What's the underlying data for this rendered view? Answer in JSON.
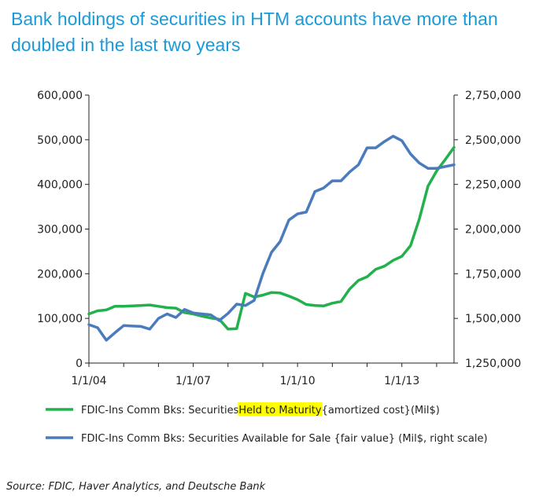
{
  "title": "Bank holdings of securities in HTM accounts have more than doubled in the last two years",
  "source": "Source: FDIC, Haver Analytics, and Deutsche Bank",
  "colors": {
    "title": "#1a9ad6",
    "htm": "#22b14c",
    "afs": "#4a7bbd",
    "highlight": "#ffff00"
  },
  "chart_data": {
    "type": "line",
    "x_tick_labels": [
      "1/1/04",
      "1/1/07",
      "1/1/10",
      "1/1/13"
    ],
    "x_tick_values": [
      2004,
      2007,
      2010,
      2013
    ],
    "xlim": [
      2004,
      2014.5
    ],
    "left_axis": {
      "ticks": [
        0,
        100000,
        200000,
        300000,
        400000,
        500000,
        600000
      ],
      "labels": [
        "0",
        "100,000",
        "200,000",
        "300,000",
        "400,000",
        "500,000",
        "600,000"
      ],
      "ylim": [
        0,
        600000
      ]
    },
    "right_axis": {
      "ticks": [
        1250000,
        1500000,
        1750000,
        2000000,
        2250000,
        2500000,
        2750000
      ],
      "labels": [
        "1,250,000",
        "1,500,000",
        "1,750,000",
        "2,000,000",
        "2,250,000",
        "2,500,000",
        "2,750,000"
      ],
      "ylim": [
        1250000,
        2750000
      ]
    },
    "series": [
      {
        "name": "FDIC-Ins Comm Bks: Securities Held to Maturity {amortized cost}(Mil$)",
        "legend_pre": "FDIC-Ins Comm Bks: Securities ",
        "legend_highlight": "Held to Maturity",
        "legend_post": " {amortized cost}(Mil$)",
        "axis": "left",
        "x": [
          2004.0,
          2004.25,
          2004.5,
          2004.75,
          2005.0,
          2005.25,
          2005.5,
          2005.75,
          2006.0,
          2006.25,
          2006.5,
          2006.75,
          2007.0,
          2007.25,
          2007.5,
          2007.75,
          2008.0,
          2008.25,
          2008.5,
          2008.75,
          2009.0,
          2009.25,
          2009.5,
          2009.75,
          2010.0,
          2010.25,
          2010.5,
          2010.75,
          2011.0,
          2011.25,
          2011.5,
          2011.75,
          2012.0,
          2012.25,
          2012.5,
          2012.75,
          2013.0,
          2013.25,
          2013.5,
          2013.75,
          2014.0,
          2014.25,
          2014.5
        ],
        "values": [
          110000,
          117000,
          119000,
          127000,
          127000,
          128000,
          129000,
          130000,
          127000,
          124000,
          123000,
          113000,
          110000,
          105000,
          101000,
          98000,
          76000,
          77000,
          156000,
          148000,
          152000,
          158000,
          157000,
          150000,
          142000,
          131000,
          129000,
          128000,
          134000,
          138000,
          166000,
          185000,
          193000,
          210000,
          217000,
          230000,
          239000,
          263000,
          322000,
          396000,
          430000,
          456000,
          483000
        ]
      },
      {
        "name": "FDIC-Ins Comm Bks: Securities Available for Sale {fair value} (Mil$, right scale)",
        "legend_pre": "FDIC-Ins Comm Bks: Securities Available for Sale {fair value} (Mil$, right scale)",
        "axis": "right",
        "x": [
          2004.0,
          2004.25,
          2004.5,
          2004.75,
          2005.0,
          2005.25,
          2005.5,
          2005.75,
          2006.0,
          2006.25,
          2006.5,
          2006.75,
          2007.0,
          2007.25,
          2007.5,
          2007.75,
          2008.0,
          2008.25,
          2008.5,
          2008.75,
          2009.0,
          2009.25,
          2009.5,
          2009.75,
          2010.0,
          2010.25,
          2010.5,
          2010.75,
          2011.0,
          2011.25,
          2011.5,
          2011.75,
          2012.0,
          2012.25,
          2012.5,
          2012.75,
          2013.0,
          2013.25,
          2013.5,
          2013.75,
          2014.0,
          2014.25,
          2014.5
        ],
        "values": [
          1465000,
          1448000,
          1378000,
          1420000,
          1460000,
          1457000,
          1455000,
          1440000,
          1500000,
          1525000,
          1505000,
          1550000,
          1530000,
          1525000,
          1520000,
          1488000,
          1528000,
          1580000,
          1572000,
          1600000,
          1750000,
          1870000,
          1930000,
          2050000,
          2085000,
          2095000,
          2210000,
          2230000,
          2270000,
          2270000,
          2320000,
          2360000,
          2455000,
          2455000,
          2490000,
          2520000,
          2495000,
          2420000,
          2370000,
          2340000,
          2340000,
          2350000,
          2360000
        ]
      }
    ]
  }
}
